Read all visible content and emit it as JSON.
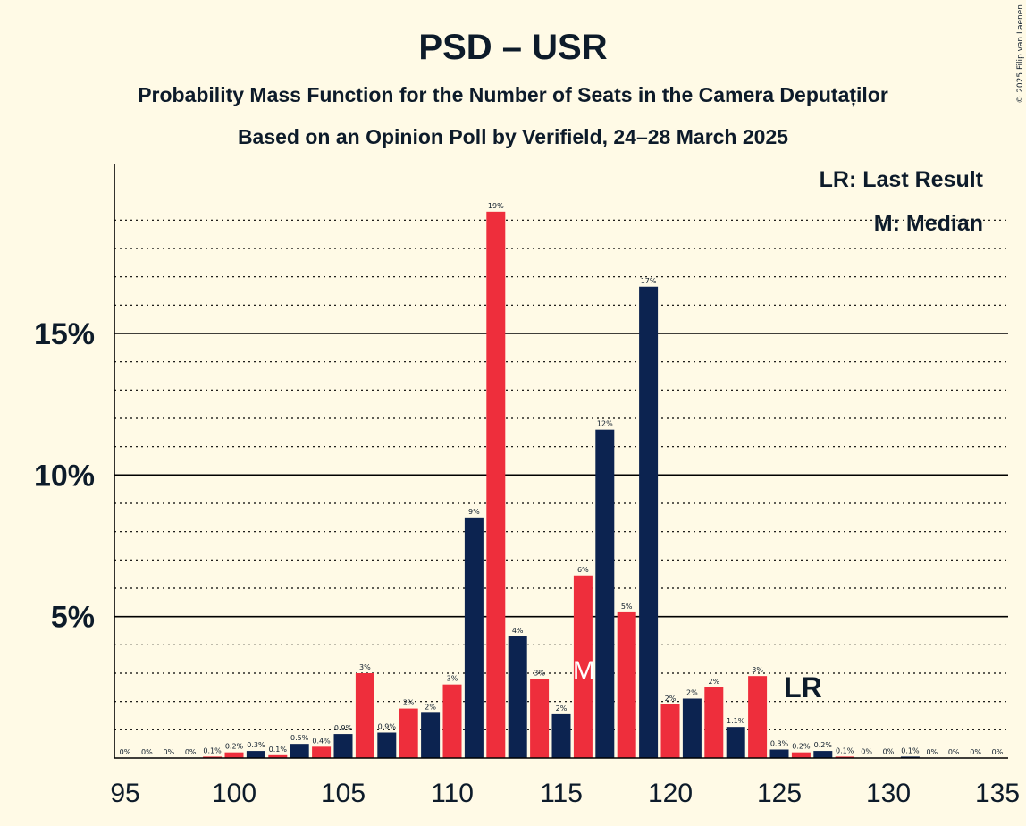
{
  "colors": {
    "background": "#fffae6",
    "usr": "#ee2e3c",
    "psd": "#0c2350",
    "text": "#0d1b2a"
  },
  "credit": "© 2025 Filip van Laenen",
  "chart_data": {
    "type": "bar",
    "title": "PSD – USR",
    "subtitle": "Probability Mass Function for the Number of Seats in the Camera Deputaților",
    "subtitle2": "Based on an Opinion Poll by Verifield, 24–28 March 2025",
    "legend": {
      "lr": "LR: Last Result",
      "m": "M: Median",
      "placement": "top-right"
    },
    "x": [
      95,
      96,
      97,
      98,
      99,
      100,
      101,
      102,
      103,
      104,
      105,
      106,
      107,
      108,
      109,
      110,
      111,
      112,
      113,
      114,
      115,
      116,
      117,
      118,
      119,
      120,
      121,
      122,
      123,
      124,
      125,
      126,
      127,
      128,
      129,
      130,
      131,
      132,
      133,
      134,
      135
    ],
    "values": [
      0,
      0,
      0,
      0,
      0.05,
      0.2,
      0.25,
      0.1,
      0.5,
      0.4,
      0.85,
      3.0,
      0.9,
      1.75,
      1.6,
      2.6,
      8.5,
      19.3,
      4.3,
      2.8,
      1.55,
      6.45,
      11.6,
      5.15,
      16.65,
      1.9,
      2.1,
      2.5,
      1.1,
      2.9,
      0.3,
      0.2,
      0.25,
      0.05,
      0.01,
      0.01,
      0.05,
      0,
      0,
      0,
      0
    ],
    "labels": [
      "0%",
      "0%",
      "0%",
      "0%",
      "0.1%",
      "0.2%",
      "0.3%",
      "0.1%",
      "0.5%",
      "0.4%",
      "0.9%",
      "3%",
      "0.9%",
      "2%",
      "2%",
      "3%",
      "9%",
      "19%",
      "4%",
      "3%",
      "2%",
      "6%",
      "12%",
      "5%",
      "17%",
      "2%",
      "2%",
      "2%",
      "1.1%",
      "3%",
      "0.3%",
      "0.2%",
      "0.2%",
      "0.1%",
      "0%",
      "0%",
      "0.1%",
      "0%",
      "0%",
      "0%",
      "0%"
    ],
    "bar_colors": [
      "red",
      "red",
      "red",
      "red",
      "red",
      "red",
      "blue",
      "red",
      "blue",
      "red",
      "blue",
      "red",
      "blue",
      "red",
      "blue",
      "red",
      "blue",
      "red",
      "blue",
      "red",
      "blue",
      "red",
      "blue",
      "red",
      "blue",
      "red",
      "blue",
      "red",
      "blue",
      "red",
      "blue",
      "red",
      "blue",
      "red",
      "blue",
      "red",
      "blue",
      "red",
      "blue",
      "red",
      "blue"
    ],
    "x_ticks": [
      95,
      100,
      105,
      110,
      115,
      120,
      125,
      130,
      135
    ],
    "y_ticks": [
      {
        "value": 5,
        "label": "5%"
      },
      {
        "value": 10,
        "label": "10%"
      },
      {
        "value": 15,
        "label": "15%"
      }
    ],
    "minor_grid_step": 1,
    "ylim": [
      0,
      21
    ],
    "xlim": [
      95,
      135
    ],
    "grid": true,
    "median_seat": 116,
    "median_label": "M",
    "last_result_seat": 126,
    "last_result_label": "LR"
  }
}
